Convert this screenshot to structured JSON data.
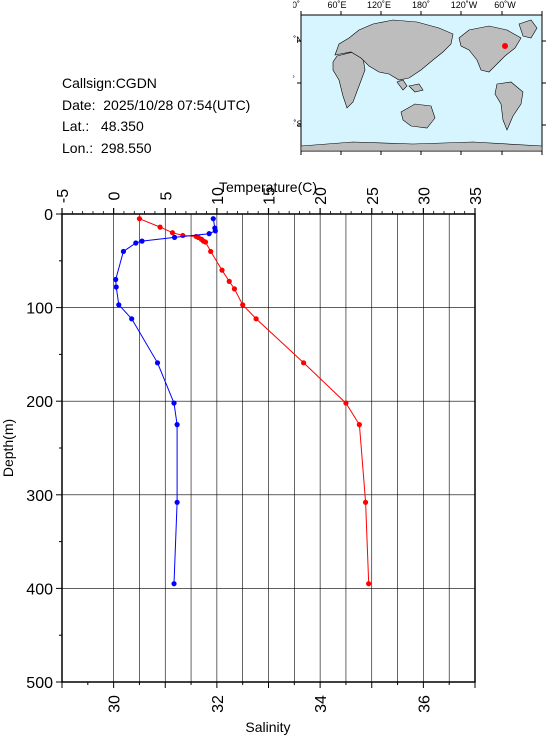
{
  "info": {
    "callsign": "Callsign:CGDN",
    "date_label": "Date:",
    "date_value": "2025/10/28 07:54(UTC)",
    "lat_label": "Lat.:",
    "lat_value": "48.350",
    "lon_label": "Lon.:",
    "lon_value": "298.550"
  },
  "map": {
    "top_labels": [
      "0˚",
      "60˚E",
      "120˚E",
      "180˚",
      "120˚W",
      "60˚W"
    ],
    "left_labels": [
      "60˚N",
      "0˚",
      "60˚S"
    ],
    "ocean_color": "#d6f5ff",
    "land_color": "#bdbdbd",
    "marker_color": "#ff0000"
  },
  "chart_data": {
    "type": "line",
    "title": "",
    "temperature_axis": {
      "label": "Temperature(C)",
      "range": [
        -5,
        35
      ],
      "ticks": [
        -5,
        0,
        5,
        10,
        15,
        20,
        25,
        30,
        35
      ]
    },
    "salinity_axis": {
      "label": "Salinity",
      "range": [
        29,
        37
      ],
      "ticks": [
        30,
        32,
        34,
        36
      ]
    },
    "depth_axis": {
      "label": "Depth(m)",
      "range": [
        0,
        500
      ],
      "ticks": [
        0,
        100,
        200,
        300,
        400,
        500
      ],
      "inverted": true
    },
    "grid": true,
    "series": [
      {
        "color": "#ff0000",
        "axis": "temperature",
        "points": [
          [
            2.5,
            5
          ],
          [
            4.5,
            14
          ],
          [
            5.7,
            20
          ],
          [
            6.7,
            23
          ],
          [
            8.0,
            24
          ],
          [
            8.2,
            25
          ],
          [
            8.5,
            27
          ],
          [
            8.7,
            29
          ],
          [
            8.9,
            30
          ],
          [
            9.4,
            40
          ],
          [
            10.5,
            60
          ],
          [
            11.2,
            72
          ],
          [
            11.7,
            80
          ],
          [
            12.5,
            97
          ],
          [
            13.8,
            112
          ],
          [
            18.4,
            159
          ],
          [
            22.5,
            202
          ],
          [
            23.8,
            225
          ],
          [
            24.4,
            308
          ],
          [
            24.7,
            395
          ]
        ]
      },
      {
        "color": "#0000ff",
        "axis": "salinity",
        "points": [
          [
            31.93,
            5
          ],
          [
            31.96,
            15
          ],
          [
            31.97,
            18
          ],
          [
            31.85,
            21
          ],
          [
            31.18,
            25
          ],
          [
            30.55,
            29
          ],
          [
            30.43,
            31
          ],
          [
            30.19,
            40
          ],
          [
            30.04,
            70
          ],
          [
            30.05,
            78
          ],
          [
            30.1,
            97
          ],
          [
            30.35,
            112
          ],
          [
            30.85,
            159
          ],
          [
            31.17,
            202
          ],
          [
            31.23,
            225
          ],
          [
            31.23,
            308
          ],
          [
            31.17,
            395
          ]
        ]
      }
    ]
  }
}
